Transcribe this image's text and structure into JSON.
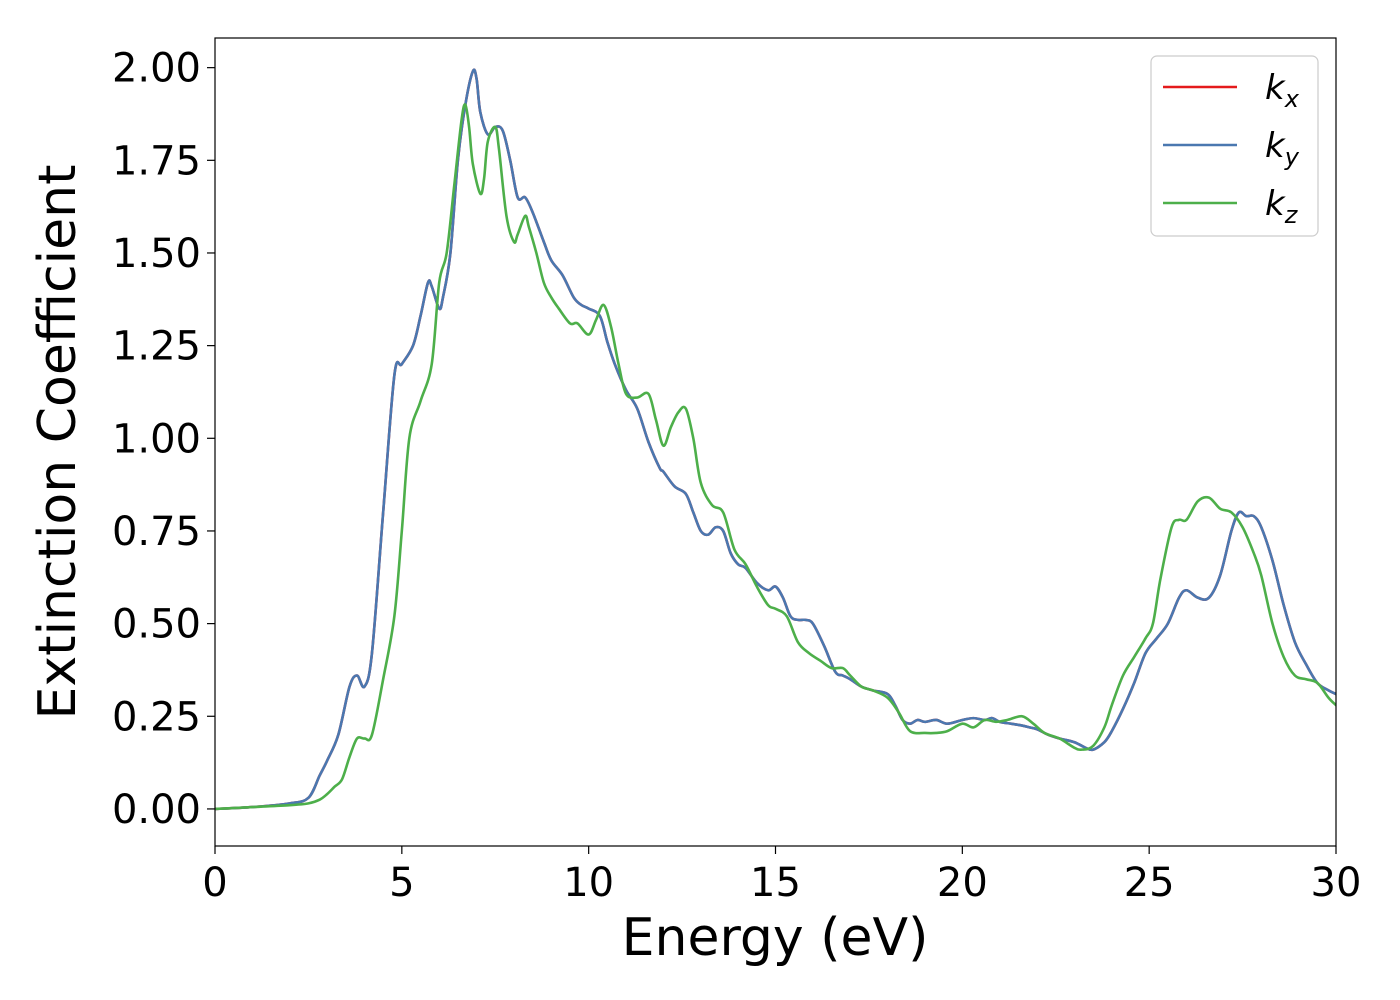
{
  "chart_data": {
    "type": "line",
    "title": "",
    "xlabel": "Energy (eV)",
    "ylabel": "Extinction Coefficient",
    "xlim": [
      0,
      30
    ],
    "ylim": [
      -0.1,
      2.08
    ],
    "grid": false,
    "legend_position": "top-right",
    "x_ticks": [
      0,
      5,
      10,
      15,
      20,
      25,
      30
    ],
    "x_tick_labels": [
      "0",
      "5",
      "10",
      "15",
      "20",
      "25",
      "30"
    ],
    "y_ticks": [
      0,
      0.25,
      0.5,
      0.75,
      1.0,
      1.25,
      1.5,
      1.75,
      2.0
    ],
    "y_tick_labels": [
      "0.00",
      "0.25",
      "0.50",
      "0.75",
      "1.00",
      "1.25",
      "1.50",
      "1.75",
      "2.00"
    ],
    "series": [
      {
        "name": "kx",
        "base": "k",
        "sub": "x",
        "color": "#e41a1c",
        "x": [
          0,
          1,
          2,
          2.5,
          2.8,
          3.0,
          3.3,
          3.6,
          3.8,
          4.0,
          4.2,
          4.5,
          4.8,
          5.0,
          5.3,
          5.5,
          5.7,
          5.8,
          6.0,
          6.1,
          6.3,
          6.5,
          6.7,
          6.9,
          7.0,
          7.1,
          7.3,
          7.5,
          7.7,
          7.9,
          8.1,
          8.3,
          8.5,
          8.8,
          9.0,
          9.3,
          9.6,
          9.8,
          10.0,
          10.3,
          10.5,
          10.7,
          11.0,
          11.3,
          11.6,
          11.9,
          12.0,
          12.3,
          12.6,
          12.8,
          13.0,
          13.2,
          13.4,
          13.6,
          13.8,
          14.0,
          14.2,
          14.5,
          14.8,
          15.0,
          15.2,
          15.4,
          15.6,
          15.8,
          16.0,
          16.3,
          16.6,
          16.8,
          17.0,
          17.3,
          17.6,
          18.0,
          18.2,
          18.4,
          18.6,
          18.8,
          19.0,
          19.3,
          19.6,
          20.0,
          20.3,
          20.6,
          20.8,
          21.0,
          21.3,
          21.6,
          21.8,
          22.0,
          22.3,
          22.6,
          23.0,
          23.3,
          23.5,
          23.8,
          24.0,
          24.3,
          24.6,
          24.9,
          25.2,
          25.5,
          25.8,
          26.0,
          26.3,
          26.6,
          26.9,
          27.2,
          27.4,
          27.6,
          27.8,
          28.0,
          28.3,
          28.6,
          28.9,
          29.2,
          29.5,
          29.8,
          30.0
        ],
        "y": [
          0,
          0.005,
          0.015,
          0.03,
          0.09,
          0.13,
          0.2,
          0.33,
          0.36,
          0.33,
          0.42,
          0.8,
          1.17,
          1.2,
          1.25,
          1.33,
          1.42,
          1.41,
          1.35,
          1.38,
          1.5,
          1.75,
          1.9,
          1.99,
          1.97,
          1.88,
          1.82,
          1.84,
          1.83,
          1.75,
          1.65,
          1.65,
          1.61,
          1.53,
          1.48,
          1.44,
          1.38,
          1.36,
          1.35,
          1.33,
          1.26,
          1.2,
          1.13,
          1.08,
          0.99,
          0.92,
          0.91,
          0.87,
          0.85,
          0.8,
          0.75,
          0.74,
          0.76,
          0.75,
          0.69,
          0.66,
          0.65,
          0.61,
          0.59,
          0.6,
          0.57,
          0.52,
          0.51,
          0.51,
          0.5,
          0.44,
          0.37,
          0.36,
          0.35,
          0.33,
          0.32,
          0.31,
          0.28,
          0.24,
          0.23,
          0.24,
          0.235,
          0.24,
          0.23,
          0.24,
          0.245,
          0.24,
          0.245,
          0.235,
          0.23,
          0.225,
          0.22,
          0.215,
          0.2,
          0.19,
          0.18,
          0.165,
          0.16,
          0.18,
          0.21,
          0.27,
          0.34,
          0.42,
          0.46,
          0.5,
          0.57,
          0.59,
          0.57,
          0.57,
          0.63,
          0.75,
          0.8,
          0.79,
          0.79,
          0.76,
          0.67,
          0.55,
          0.45,
          0.39,
          0.34,
          0.32,
          0.31
        ]
      },
      {
        "name": "ky",
        "base": "k",
        "sub": "y",
        "color": "#4a78b0",
        "x": [
          0,
          1,
          2,
          2.5,
          2.8,
          3.0,
          3.3,
          3.6,
          3.8,
          4.0,
          4.2,
          4.5,
          4.8,
          5.0,
          5.3,
          5.5,
          5.7,
          5.8,
          6.0,
          6.1,
          6.3,
          6.5,
          6.7,
          6.9,
          7.0,
          7.1,
          7.3,
          7.5,
          7.7,
          7.9,
          8.1,
          8.3,
          8.5,
          8.8,
          9.0,
          9.3,
          9.6,
          9.8,
          10.0,
          10.3,
          10.5,
          10.7,
          11.0,
          11.3,
          11.6,
          11.9,
          12.0,
          12.3,
          12.6,
          12.8,
          13.0,
          13.2,
          13.4,
          13.6,
          13.8,
          14.0,
          14.2,
          14.5,
          14.8,
          15.0,
          15.2,
          15.4,
          15.6,
          15.8,
          16.0,
          16.3,
          16.6,
          16.8,
          17.0,
          17.3,
          17.6,
          18.0,
          18.2,
          18.4,
          18.6,
          18.8,
          19.0,
          19.3,
          19.6,
          20.0,
          20.3,
          20.6,
          20.8,
          21.0,
          21.3,
          21.6,
          21.8,
          22.0,
          22.3,
          22.6,
          23.0,
          23.3,
          23.5,
          23.8,
          24.0,
          24.3,
          24.6,
          24.9,
          25.2,
          25.5,
          25.8,
          26.0,
          26.3,
          26.6,
          26.9,
          27.2,
          27.4,
          27.6,
          27.8,
          28.0,
          28.3,
          28.6,
          28.9,
          29.2,
          29.5,
          29.8,
          30.0
        ],
        "y": [
          0,
          0.005,
          0.015,
          0.03,
          0.09,
          0.13,
          0.2,
          0.33,
          0.36,
          0.33,
          0.42,
          0.8,
          1.17,
          1.2,
          1.25,
          1.33,
          1.42,
          1.41,
          1.35,
          1.38,
          1.5,
          1.75,
          1.9,
          1.99,
          1.97,
          1.88,
          1.82,
          1.84,
          1.83,
          1.75,
          1.65,
          1.65,
          1.61,
          1.53,
          1.48,
          1.44,
          1.38,
          1.36,
          1.35,
          1.33,
          1.26,
          1.2,
          1.13,
          1.08,
          0.99,
          0.92,
          0.91,
          0.87,
          0.85,
          0.8,
          0.75,
          0.74,
          0.76,
          0.75,
          0.69,
          0.66,
          0.65,
          0.61,
          0.59,
          0.6,
          0.57,
          0.52,
          0.51,
          0.51,
          0.5,
          0.44,
          0.37,
          0.36,
          0.35,
          0.33,
          0.32,
          0.31,
          0.28,
          0.24,
          0.23,
          0.24,
          0.235,
          0.24,
          0.23,
          0.24,
          0.245,
          0.24,
          0.245,
          0.235,
          0.23,
          0.225,
          0.22,
          0.215,
          0.2,
          0.19,
          0.18,
          0.165,
          0.16,
          0.18,
          0.21,
          0.27,
          0.34,
          0.42,
          0.46,
          0.5,
          0.57,
          0.59,
          0.57,
          0.57,
          0.63,
          0.75,
          0.8,
          0.79,
          0.79,
          0.76,
          0.67,
          0.55,
          0.45,
          0.39,
          0.34,
          0.32,
          0.31
        ]
      },
      {
        "name": "kz",
        "base": "k",
        "sub": "z",
        "color": "#4daf4a",
        "x": [
          0,
          1,
          2,
          2.5,
          2.8,
          3.0,
          3.2,
          3.4,
          3.6,
          3.8,
          4.0,
          4.2,
          4.5,
          4.8,
          5.0,
          5.2,
          5.5,
          5.8,
          6.0,
          6.2,
          6.4,
          6.6,
          6.7,
          6.8,
          6.9,
          7.1,
          7.2,
          7.3,
          7.5,
          7.6,
          7.8,
          8.0,
          8.1,
          8.3,
          8.4,
          8.6,
          8.8,
          9.0,
          9.2,
          9.5,
          9.7,
          10.0,
          10.2,
          10.4,
          10.6,
          10.8,
          11.0,
          11.3,
          11.6,
          11.8,
          12.0,
          12.2,
          12.4,
          12.6,
          12.8,
          13.0,
          13.3,
          13.6,
          13.9,
          14.2,
          14.5,
          14.8,
          15.0,
          15.3,
          15.6,
          15.9,
          16.2,
          16.5,
          16.8,
          17.0,
          17.3,
          17.6,
          18.0,
          18.3,
          18.6,
          19.0,
          19.3,
          19.6,
          20.0,
          20.3,
          20.6,
          20.9,
          21.2,
          21.6,
          21.9,
          22.2,
          22.6,
          23.0,
          23.2,
          23.5,
          23.8,
          24.0,
          24.3,
          24.6,
          24.9,
          25.1,
          25.3,
          25.6,
          25.8,
          26.0,
          26.3,
          26.6,
          26.9,
          27.2,
          27.5,
          27.8,
          28.0,
          28.3,
          28.6,
          28.9,
          29.2,
          29.5,
          29.8,
          30.0
        ],
        "y": [
          0,
          0.005,
          0.01,
          0.015,
          0.025,
          0.04,
          0.06,
          0.08,
          0.14,
          0.19,
          0.19,
          0.2,
          0.35,
          0.52,
          0.75,
          1.0,
          1.1,
          1.2,
          1.42,
          1.5,
          1.68,
          1.86,
          1.9,
          1.84,
          1.74,
          1.66,
          1.7,
          1.8,
          1.84,
          1.78,
          1.6,
          1.53,
          1.55,
          1.6,
          1.57,
          1.5,
          1.42,
          1.38,
          1.35,
          1.31,
          1.31,
          1.28,
          1.32,
          1.36,
          1.3,
          1.2,
          1.12,
          1.11,
          1.12,
          1.05,
          0.98,
          1.03,
          1.07,
          1.08,
          1.0,
          0.88,
          0.82,
          0.8,
          0.7,
          0.66,
          0.6,
          0.55,
          0.54,
          0.52,
          0.45,
          0.42,
          0.4,
          0.38,
          0.38,
          0.36,
          0.33,
          0.32,
          0.3,
          0.26,
          0.21,
          0.205,
          0.205,
          0.21,
          0.23,
          0.22,
          0.24,
          0.235,
          0.24,
          0.25,
          0.23,
          0.205,
          0.19,
          0.165,
          0.16,
          0.17,
          0.22,
          0.28,
          0.36,
          0.41,
          0.46,
          0.5,
          0.62,
          0.76,
          0.78,
          0.78,
          0.83,
          0.84,
          0.81,
          0.8,
          0.76,
          0.69,
          0.63,
          0.5,
          0.41,
          0.36,
          0.35,
          0.34,
          0.3,
          0.28
        ]
      }
    ]
  }
}
